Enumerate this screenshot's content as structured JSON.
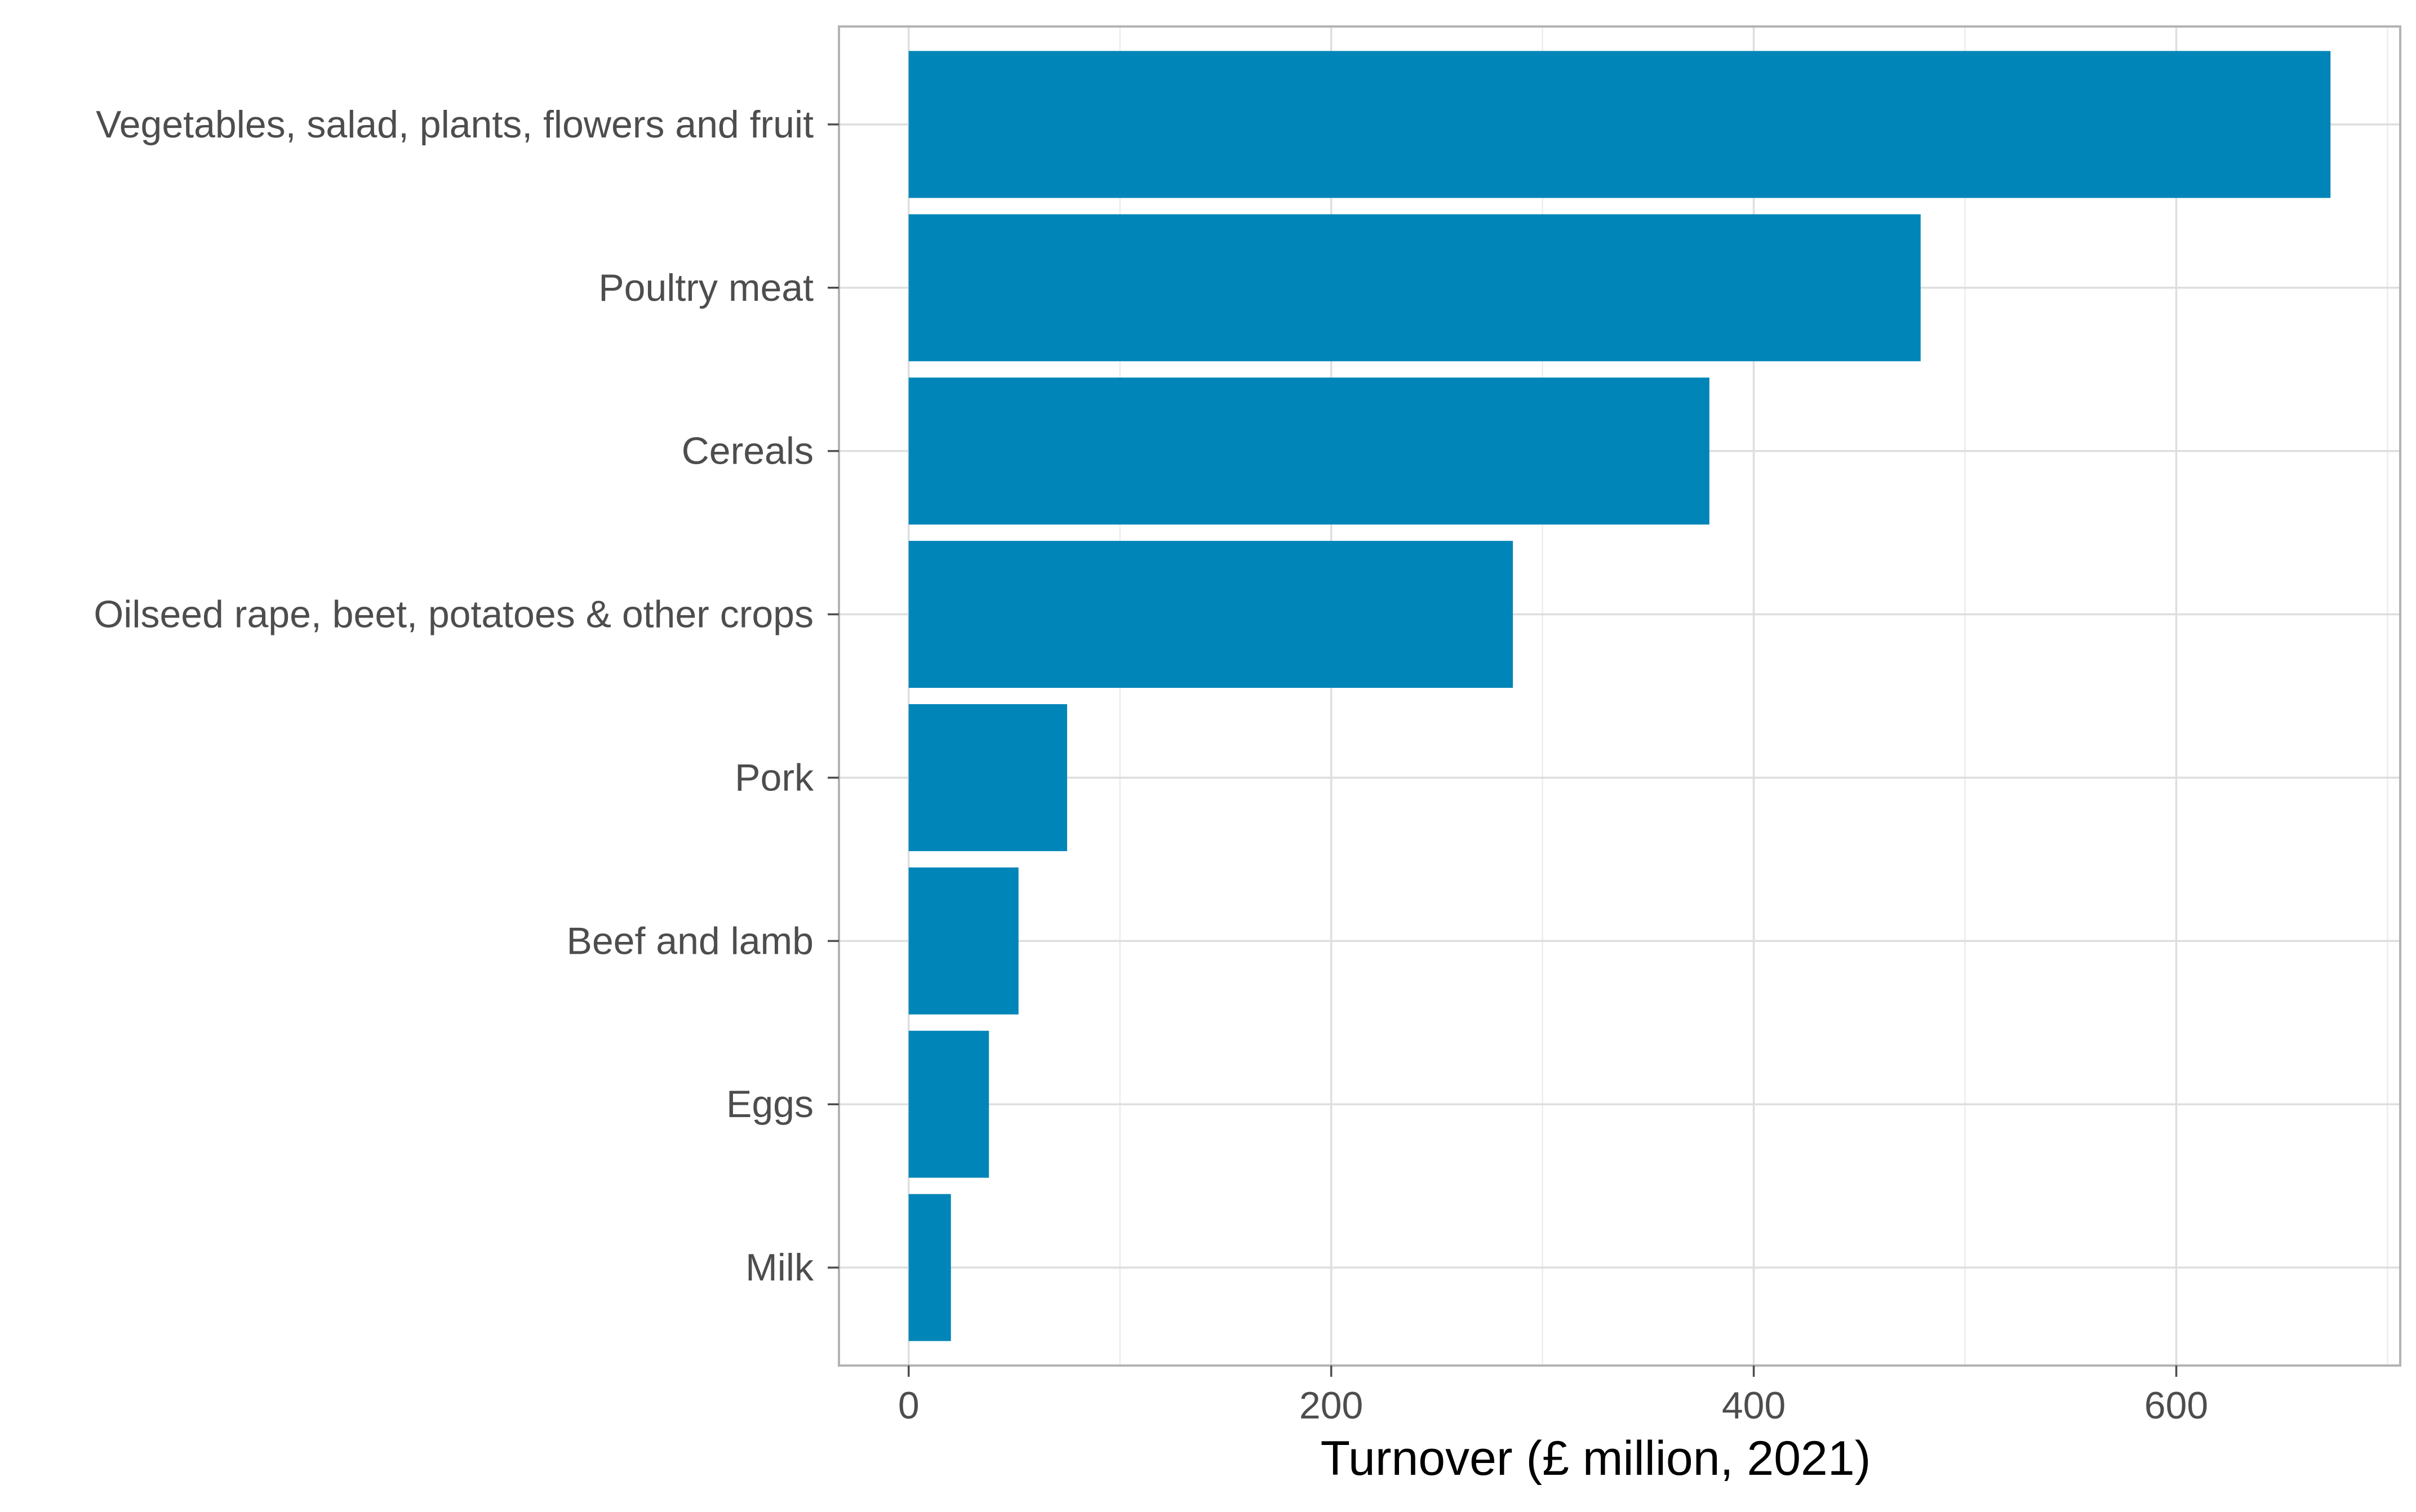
{
  "chart_data": {
    "type": "bar",
    "orientation": "horizontal",
    "categories": [
      "Vegetables, salad, plants, flowers and fruit",
      "Poultry meat",
      "Cereals",
      "Oilseed rape, beet, potatoes & other crops",
      "Pork",
      "Beef and lamb",
      "Eggs",
      "Milk"
    ],
    "values": [
      673,
      479,
      379,
      286,
      75,
      52,
      38,
      20
    ],
    "title": "",
    "xlabel": "Turnover (£ million, 2021)",
    "ylabel": "",
    "xlim": [
      -33,
      706
    ],
    "xticks": [
      0,
      200,
      400,
      600
    ],
    "xtick_labels": [
      "0",
      "200",
      "400",
      "600"
    ],
    "grid": true,
    "legend": "none",
    "bar_color": "#0085B8"
  }
}
